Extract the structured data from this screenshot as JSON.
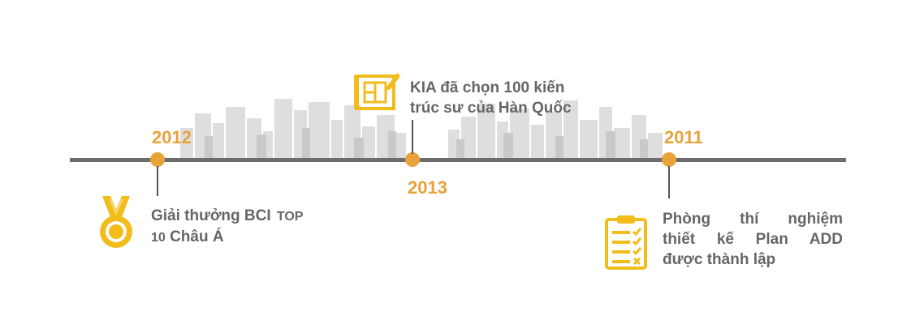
{
  "colors": {
    "accent": "#e8a23a",
    "icon": "#f2bc1b",
    "line": "#6d6d6d",
    "text": "#666666",
    "skyline": "#dcdcdc"
  },
  "events": [
    {
      "year": "2012",
      "line1_part1": "Giải thưởng BCI ",
      "line1_part2": "TOP",
      "line2_part1": "10",
      "line2_part2": " Châu Á",
      "icon": "medal-icon"
    },
    {
      "year": "2013",
      "line1": "KIA đã chọn 100 kiến",
      "line2": "trúc sư của Hàn Quốc",
      "icon": "blueprint-icon"
    },
    {
      "year": "2011",
      "line1": "Phòng thí nghiệm",
      "line2": "thiết kế Plan ADD",
      "line3": "được thành lập",
      "icon": "checklist-icon"
    }
  ]
}
